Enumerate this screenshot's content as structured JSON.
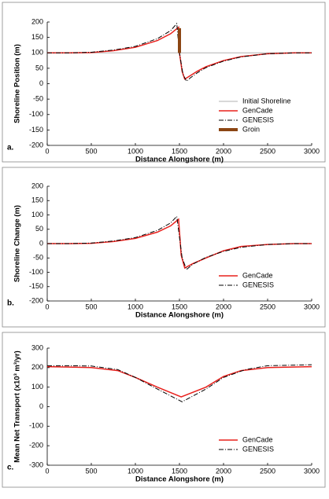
{
  "chart_data": [
    {
      "type": "line",
      "panel_label": "a.",
      "xlabel": "Distance Alongshore (m)",
      "ylabel": "Shoreline Position (m)",
      "xlim": [
        0,
        3000
      ],
      "xticks": [
        0,
        500,
        1000,
        1500,
        2000,
        2500,
        3000
      ],
      "ylim": [
        -200,
        200
      ],
      "yticks": [
        -200,
        -150,
        -100,
        -50,
        0,
        50,
        100,
        150,
        200
      ],
      "legend": "lower right",
      "series": [
        {
          "name": "Initial Shoreline",
          "color": "#b0b0b0",
          "linestyle": "solid",
          "linewidth": 1,
          "x": [
            0,
            3000
          ],
          "values": [
            100,
            100
          ]
        },
        {
          "name": "GenCade",
          "color": "#e8201c",
          "linestyle": "solid",
          "linewidth": 1.5,
          "x": [
            0,
            250,
            500,
            750,
            1000,
            1250,
            1400,
            1490,
            1500,
            1530,
            1560,
            1600,
            1700,
            1800,
            2000,
            2200,
            2500,
            2800,
            3000
          ],
          "values": [
            100,
            100,
            101,
            107,
            118,
            140,
            162,
            183,
            100,
            40,
            15,
            22,
            40,
            55,
            75,
            88,
            97,
            100,
            100
          ]
        },
        {
          "name": "GENESIS",
          "color": "#000000",
          "linestyle": "dash-dot",
          "linewidth": 1,
          "x": [
            0,
            250,
            500,
            750,
            1000,
            1250,
            1400,
            1470,
            1500,
            1540,
            1580,
            1620,
            1700,
            1800,
            2000,
            2200,
            2500,
            2800,
            3000
          ],
          "values": [
            100,
            100,
            102,
            109,
            121,
            146,
            172,
            195,
            100,
            30,
            8,
            18,
            35,
            52,
            73,
            87,
            97,
            100,
            100
          ]
        },
        {
          "name": "Groin",
          "color": "#8b4513",
          "linestyle": "solid",
          "linewidth": 4,
          "x": [
            1500,
            1500
          ],
          "values": [
            100,
            180
          ]
        }
      ]
    },
    {
      "type": "line",
      "panel_label": "b.",
      "xlabel": "Distance Alongshore (m)",
      "ylabel": "Shoreline Change (m)",
      "xlim": [
        0,
        3000
      ],
      "xticks": [
        0,
        500,
        1000,
        1500,
        2000,
        2500,
        3000
      ],
      "ylim": [
        -200,
        200
      ],
      "yticks": [
        -200,
        -150,
        -100,
        -50,
        0,
        50,
        100,
        150,
        200
      ],
      "legend": "lower right",
      "series": [
        {
          "name": "GenCade",
          "color": "#e8201c",
          "linestyle": "solid",
          "linewidth": 1.5,
          "x": [
            0,
            250,
            500,
            750,
            1000,
            1250,
            1400,
            1490,
            1520,
            1560,
            1650,
            1800,
            2000,
            2200,
            2500,
            2800,
            3000
          ],
          "values": [
            0,
            0,
            1,
            7,
            18,
            40,
            62,
            85,
            -40,
            -85,
            -70,
            -50,
            -25,
            -10,
            -3,
            0,
            0
          ]
        },
        {
          "name": "GENESIS",
          "color": "#000000",
          "linestyle": "dash-dot",
          "linewidth": 1,
          "x": [
            0,
            250,
            500,
            750,
            1000,
            1250,
            1400,
            1470,
            1530,
            1580,
            1650,
            1800,
            2000,
            2200,
            2500,
            2800,
            3000
          ],
          "values": [
            0,
            0,
            2,
            9,
            21,
            46,
            72,
            95,
            -50,
            -90,
            -72,
            -48,
            -27,
            -13,
            -3,
            0,
            0
          ]
        }
      ]
    },
    {
      "type": "line",
      "panel_label": "c.",
      "xlabel": "Distance Alongshore (m)",
      "ylabel": "Mean Net Transport (x10³ m³/yr)",
      "xlim": [
        0,
        3000
      ],
      "xticks": [
        0,
        500,
        1000,
        1500,
        2000,
        2500,
        3000
      ],
      "ylim": [
        -300,
        300
      ],
      "yticks": [
        -300,
        -200,
        -100,
        0,
        100,
        200,
        300
      ],
      "legend": "lower right",
      "series": [
        {
          "name": "GenCade",
          "color": "#e8201c",
          "linestyle": "solid",
          "linewidth": 1.5,
          "x": [
            0,
            250,
            500,
            800,
            1000,
            1250,
            1520,
            1800,
            2000,
            2200,
            2500,
            3000
          ],
          "values": [
            205,
            203,
            200,
            185,
            150,
            100,
            50,
            100,
            155,
            185,
            200,
            205
          ]
        },
        {
          "name": "GENESIS",
          "color": "#000000",
          "linestyle": "dash-dot",
          "linewidth": 1,
          "x": [
            0,
            250,
            500,
            800,
            1000,
            1250,
            1530,
            1800,
            2000,
            2250,
            2500,
            3000
          ],
          "values": [
            210,
            210,
            208,
            190,
            150,
            90,
            25,
            90,
            150,
            190,
            210,
            215
          ]
        }
      ]
    }
  ]
}
